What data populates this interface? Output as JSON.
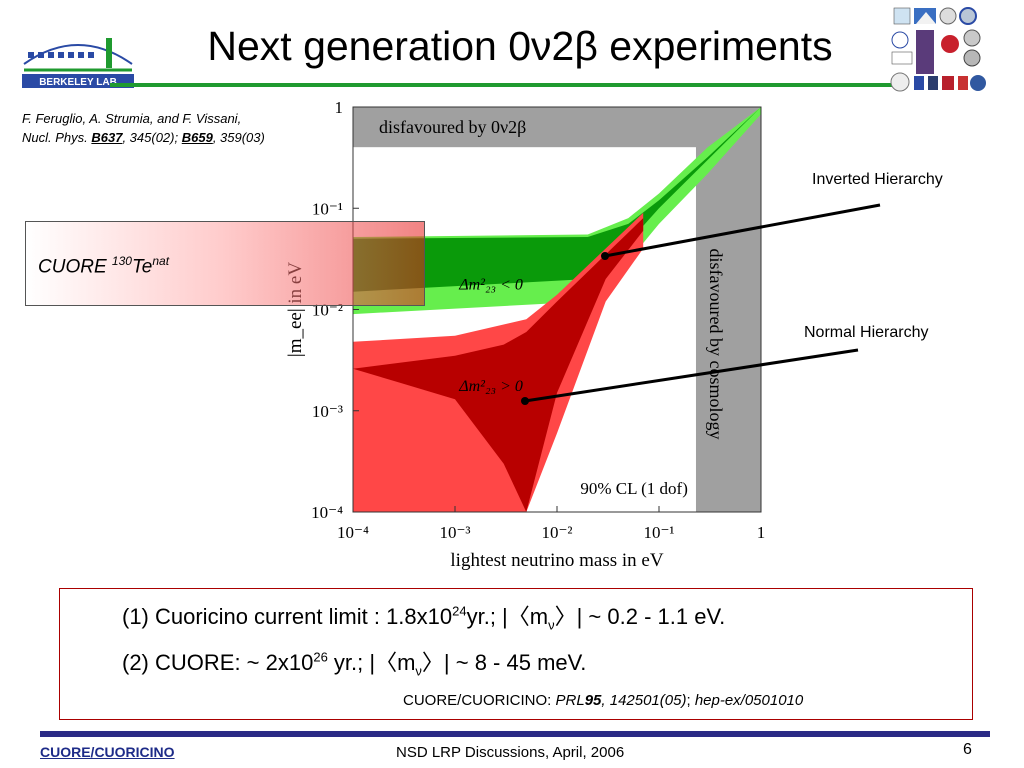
{
  "slide": {
    "title": "Next generation 0ν2β experiments",
    "reference": {
      "authors": "F. Feruglio, A. Strumia, and F. Vissani,",
      "journal": "Nucl. Phys.",
      "vol1": "B637",
      "pages1": ", 345(02);",
      "vol2": "B659",
      "pages2": ", 359(03)"
    },
    "cuore_label": {
      "name": "CUORE",
      "mass_number": "130",
      "element": "Te",
      "suffix": "nat"
    },
    "inverted_label": "Inverted Hierarchy",
    "normal_label": "Normal Hierarchy",
    "results": {
      "line1": {
        "prefix": "(1) Cuoricino current limit : 1.8x10",
        "exp": "24",
        "unit": "yr.;  |〈m",
        "nu": "ν",
        "end": "〉| ~ 0.2 - 1.1 eV."
      },
      "line2": {
        "prefix": "(2) CUORE: ~ 2x10",
        "exp": "26",
        "unit": " yr.; |〈m",
        "nu": "ν",
        "end": "〉| ~ 8 - 45 meV."
      },
      "citation": {
        "prefix": "CUORE/CUORICINO: ",
        "journal": "PRL",
        "vol": "95",
        "pages": ", 142501(05)",
        "sep": "; ",
        "arxiv": "hep-ex/0501010"
      }
    },
    "footer": {
      "left": "CUORE/CUORICINO",
      "center": "NSD LRP Discussions, April, 2006",
      "page": "6"
    },
    "logo_text": "BERKELEY LAB",
    "colors": {
      "title_rule": "#1f9a2f",
      "footer_rule": "#2a2a86",
      "dark_green": "#0a9a0a",
      "light_green": "#66ee4d",
      "dark_red": "#b80000",
      "light_red": "#ff4747",
      "gray": "#a0a0a0"
    }
  },
  "chart_data": {
    "type": "area",
    "title": "",
    "xlabel": "lightest neutrino mass in eV",
    "ylabel": "|m_ee| in eV",
    "x_scale": "log",
    "y_scale": "log",
    "xlim": [
      0.0001,
      1
    ],
    "ylim": [
      0.0001,
      1
    ],
    "x_ticks": [
      "10⁻⁴",
      "10⁻³",
      "10⁻²",
      "10⁻¹",
      "1"
    ],
    "y_ticks": [
      "1",
      "10⁻¹",
      "10⁻²",
      "10⁻³",
      "10⁻⁴"
    ],
    "series": [
      {
        "name": "Δm²₂₃ < 0",
        "note_inner": [
          [
            0.0001,
            0.015,
            0.05
          ],
          [
            0.02,
            0.02,
            0.052
          ],
          [
            0.05,
            0.046,
            0.07
          ],
          [
            0.1,
            0.1,
            0.12
          ],
          [
            0.3,
            0.3,
            0.32
          ],
          [
            1,
            1,
            1
          ]
        ],
        "outer": [
          [
            0.0001,
            0.009,
            0.052
          ],
          [
            0.02,
            0.012,
            0.055
          ],
          [
            0.05,
            0.03,
            0.08
          ],
          [
            0.1,
            0.07,
            0.14
          ],
          [
            0.3,
            0.22,
            0.4
          ],
          [
            1,
            0.85,
            1
          ]
        ]
      },
      {
        "name": "Δm²₂₃ > 0",
        "note_inner": [
          [
            0.0001,
            0.0026,
            0.0026
          ],
          [
            0.001,
            0.0013,
            0.0035
          ],
          [
            0.003,
            0.0003,
            0.0045
          ],
          [
            0.005,
            0.0001,
            0.006
          ],
          [
            0.01,
            0.0015,
            0.012
          ],
          [
            0.03,
            0.02,
            0.035
          ],
          [
            0.07,
            0.06,
            0.08
          ]
        ],
        "outer": [
          [
            0.0001,
            0.0001,
            0.0048
          ],
          [
            0.001,
            0.0001,
            0.0055
          ],
          [
            0.005,
            0.0001,
            0.008
          ],
          [
            0.01,
            0.0006,
            0.014
          ],
          [
            0.03,
            0.012,
            0.04
          ],
          [
            0.07,
            0.04,
            0.09
          ]
        ]
      }
    ],
    "annotations": [
      "disfavoured by 0ν2β",
      "disfavoured by cosmology",
      "90% CL (1 dof)"
    ],
    "legend": "none"
  }
}
